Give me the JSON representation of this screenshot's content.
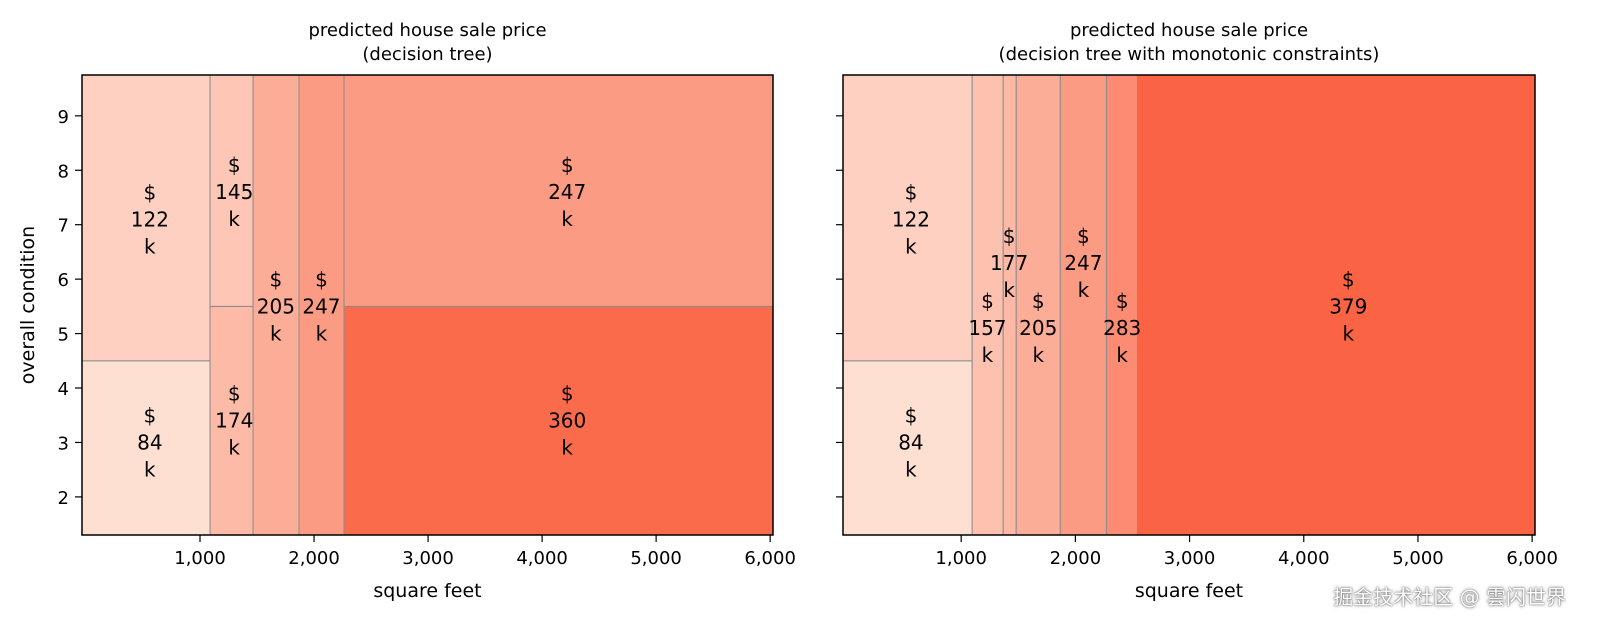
{
  "chart_data": [
    {
      "type": "heatmap",
      "title_lines": [
        "predicted house sale price",
        "(decision tree)"
      ],
      "xlabel": "square feet",
      "ylabel": "overall condition",
      "xlim": [
        -35,
        6025
      ],
      "ylim": [
        1.3,
        9.75
      ],
      "xticks": [
        1000,
        2000,
        3000,
        4000,
        5000,
        6000
      ],
      "xtick_labels": [
        "1,000",
        "2,000",
        "3,000",
        "4,000",
        "5,000",
        "6,000"
      ],
      "yticks": [
        2,
        3,
        4,
        5,
        6,
        7,
        8,
        9
      ],
      "ytick_labels": [
        "2",
        "3",
        "4",
        "5",
        "6",
        "7",
        "8",
        "9"
      ],
      "regions": [
        {
          "x": [
            -35,
            1088
          ],
          "y": [
            1.3,
            4.5
          ],
          "value": 84,
          "label_at": [
            560,
            3.0
          ]
        },
        {
          "x": [
            -35,
            1088
          ],
          "y": [
            4.5,
            9.75
          ],
          "value": 122,
          "label_at": [
            560,
            7.1
          ]
        },
        {
          "x": [
            1088,
            1465
          ],
          "y": [
            1.3,
            5.5
          ],
          "value": 174,
          "label_at": [
            1300,
            3.4
          ]
        },
        {
          "x": [
            1088,
            1465
          ],
          "y": [
            5.5,
            9.75
          ],
          "value": 145,
          "label_at": [
            1300,
            7.6
          ]
        },
        {
          "x": [
            1465,
            1868
          ],
          "y": [
            1.3,
            9.75
          ],
          "value": 205,
          "label_at": [
            1665,
            5.5
          ]
        },
        {
          "x": [
            1868,
            2263
          ],
          "y": [
            1.3,
            9.75
          ],
          "value": 247,
          "label_at": [
            2065,
            5.5
          ]
        },
        {
          "x": [
            2263,
            6025
          ],
          "y": [
            1.3,
            5.5
          ],
          "value": 360,
          "label_at": [
            4220,
            3.4
          ]
        },
        {
          "x": [
            2263,
            6025
          ],
          "y": [
            5.5,
            9.75
          ],
          "value": 247,
          "label_at": [
            4220,
            7.6
          ]
        }
      ],
      "label_prefix": "$",
      "label_suffix": "k"
    },
    {
      "type": "heatmap",
      "title_lines": [
        "predicted house sale price",
        "(decision tree with monotonic constraints)"
      ],
      "xlabel": "square feet",
      "ylabel": "",
      "xlim": [
        -35,
        6025
      ],
      "ylim": [
        1.3,
        9.75
      ],
      "xticks": [
        1000,
        2000,
        3000,
        4000,
        5000,
        6000
      ],
      "xtick_labels": [
        "1,000",
        "2,000",
        "3,000",
        "4,000",
        "5,000",
        "6,000"
      ],
      "yticks": [
        2,
        3,
        4,
        5,
        6,
        7,
        8,
        9
      ],
      "ytick_labels": [],
      "regions": [
        {
          "x": [
            -35,
            1096
          ],
          "y": [
            1.3,
            4.5
          ],
          "value": 84,
          "label_at": [
            560,
            3.0
          ]
        },
        {
          "x": [
            -35,
            1096
          ],
          "y": [
            4.5,
            9.75
          ],
          "value": 122,
          "label_at": [
            560,
            7.1
          ]
        },
        {
          "x": [
            1096,
            1368
          ],
          "y": [
            1.3,
            9.75
          ],
          "value": 157,
          "label_at": [
            1230,
            5.1
          ]
        },
        {
          "x": [
            1368,
            1482
          ],
          "y": [
            1.3,
            9.75
          ],
          "value": 177,
          "label_at": [
            1420,
            6.3
          ]
        },
        {
          "x": [
            1482,
            1868
          ],
          "y": [
            1.3,
            9.75
          ],
          "value": 205,
          "label_at": [
            1675,
            5.1
          ]
        },
        {
          "x": [
            1868,
            2272
          ],
          "y": [
            1.3,
            9.75
          ],
          "value": 247,
          "label_at": [
            2070,
            6.3
          ]
        },
        {
          "x": [
            2272,
            2544
          ],
          "y": [
            1.3,
            9.75
          ],
          "value": 283,
          "label_at": [
            2410,
            5.1
          ]
        },
        {
          "x": [
            2544,
            6025
          ],
          "y": [
            1.3,
            9.75
          ],
          "value": 379,
          "label_at": [
            4390,
            5.5
          ]
        }
      ],
      "label_prefix": "$",
      "label_suffix": "k"
    }
  ],
  "colormap": {
    "low": "#fee6da",
    "high": "#fa6040",
    "vmin": 70,
    "vmax": 385
  },
  "edge_color": "#8c8c8c",
  "watermark": "掘金技术社区 @ 雲闪世界"
}
